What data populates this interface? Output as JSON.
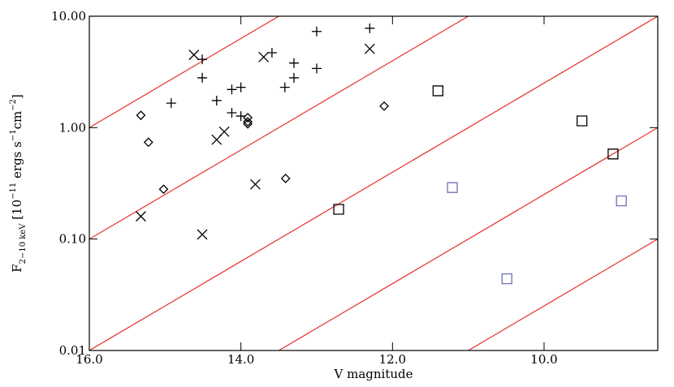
{
  "chart_data": {
    "type": "scatter",
    "xlabel": "V magnitude",
    "ylabel": [
      {
        "text": "F"
      },
      {
        "text": "2−10 keV",
        "sub": true
      },
      {
        "text": " [10"
      },
      {
        "text": "−11",
        "sup": true
      },
      {
        "text": " ergs s"
      },
      {
        "text": "−1",
        "sup": true
      },
      {
        "text": "cm"
      },
      {
        "text": "−2",
        "sup": true
      },
      {
        "text": "]"
      }
    ],
    "xlim": [
      16,
      8.5
    ],
    "ylim": [
      0.01,
      10
    ],
    "ylog": true,
    "xticks": [
      {
        "value": 16,
        "label": "16.0"
      },
      {
        "value": 14,
        "label": "14.0"
      },
      {
        "value": 12,
        "label": "12.0"
      },
      {
        "value": 10,
        "label": "10.0"
      }
    ],
    "yticks": [
      {
        "value": 0.01,
        "label": "0.01"
      },
      {
        "value": 0.1,
        "label": "0.10"
      },
      {
        "value": 1,
        "label": "1.00"
      },
      {
        "value": 10,
        "label": "10.00"
      }
    ],
    "lines": [
      {
        "color": "#e8302f",
        "x": [
          16,
          13.5
        ],
        "y": [
          1,
          10
        ]
      },
      {
        "color": "#e8302f",
        "x": [
          16,
          11
        ],
        "y": [
          0.1,
          10
        ]
      },
      {
        "color": "#e8302f",
        "x": [
          16,
          8.5
        ],
        "y": [
          0.01,
          10
        ]
      },
      {
        "color": "#e8302f",
        "x": [
          13.5,
          8.5
        ],
        "y": [
          0.01,
          1
        ]
      },
      {
        "color": "#e8302f",
        "x": [
          11,
          8.5
        ],
        "y": [
          0.01,
          0.1
        ]
      }
    ],
    "series": [
      {
        "marker": "plus",
        "color": "#000000",
        "x": [
          14.92,
          14.51,
          14.51,
          14.32,
          14.12,
          14.0,
          14.12,
          14.0,
          13.59,
          13.42,
          13.3,
          13.3,
          13.0,
          13.0,
          12.3
        ],
        "y": [
          1.66,
          2.8,
          4.1,
          1.75,
          2.2,
          2.3,
          1.36,
          1.27,
          4.7,
          2.3,
          3.8,
          2.8,
          7.3,
          3.4,
          7.8
        ]
      },
      {
        "marker": "cross",
        "color": "#000000",
        "x": [
          14.62,
          13.7,
          12.3,
          14.22,
          14.32,
          13.81,
          15.32,
          14.51
        ],
        "y": [
          4.5,
          4.3,
          5.1,
          0.92,
          0.78,
          0.31,
          0.16,
          0.11
        ]
      },
      {
        "marker": "diamond",
        "color": "#000000",
        "x": [
          15.32,
          15.22,
          15.02,
          13.91,
          13.91,
          13.91,
          13.41,
          12.11
        ],
        "y": [
          1.29,
          0.74,
          0.28,
          1.23,
          1.13,
          1.08,
          0.35,
          1.56
        ]
      },
      {
        "marker": "square",
        "color": "#000000",
        "x": [
          11.4,
          12.71,
          9.5,
          9.09
        ],
        "y": [
          2.14,
          0.185,
          1.15,
          0.58
        ]
      },
      {
        "marker": "square",
        "color": "#7070b8",
        "x": [
          11.21,
          10.49,
          8.98
        ],
        "y": [
          0.29,
          0.044,
          0.22
        ]
      }
    ]
  }
}
